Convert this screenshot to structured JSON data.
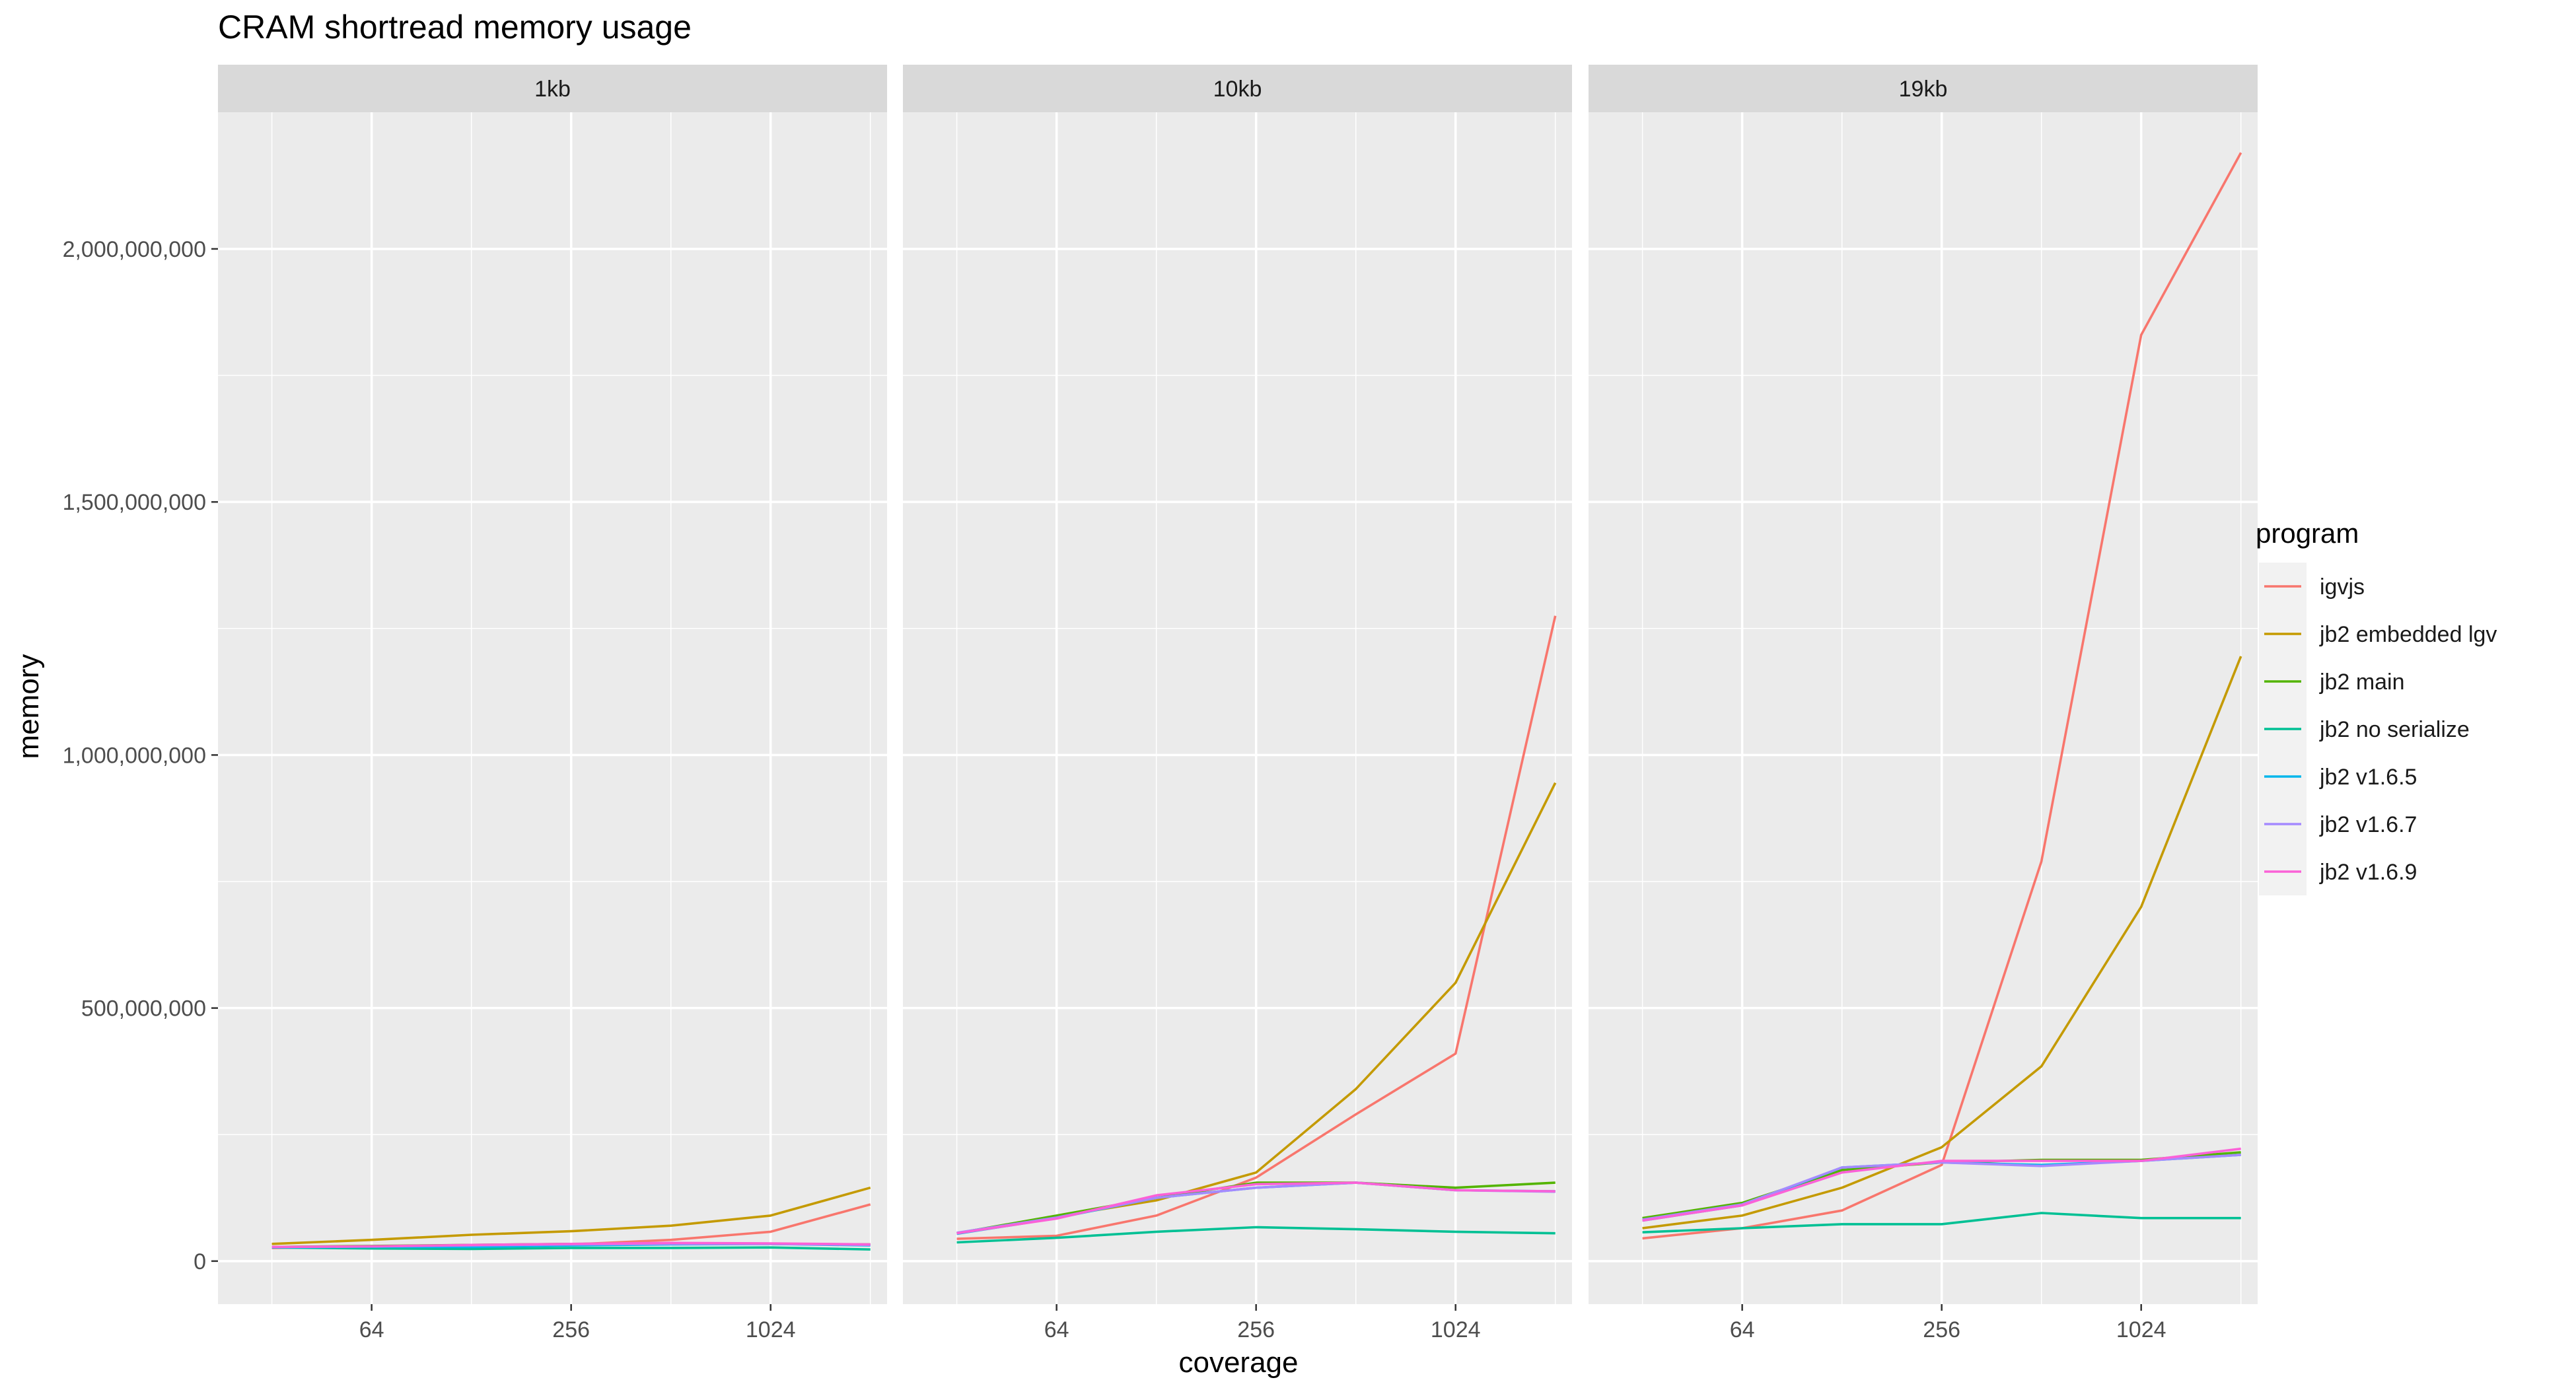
{
  "chart_data": {
    "type": "line",
    "title": "CRAM shortread memory usage",
    "xlabel": "coverage",
    "ylabel": "memory",
    "x_scale": "log2",
    "x_ticks": [
      64,
      256,
      1024
    ],
    "x_tick_labels": [
      "64",
      "256",
      "1024"
    ],
    "y_ticks": [
      0,
      500000000,
      1000000000,
      1500000000,
      2000000000
    ],
    "y_tick_labels": [
      "0",
      "500,000,000",
      "1,000,000,000",
      "1,500,000,000",
      "2,000,000,000"
    ],
    "ylim": [
      -85000000,
      2270000000
    ],
    "xlim": [
      22,
      2300
    ],
    "grid": true,
    "legend_title": "program",
    "legend_position": "right",
    "x": [
      32,
      64,
      128,
      256,
      512,
      1024,
      2048
    ],
    "panels": [
      {
        "label": "1kb",
        "series": [
          {
            "name": "igvjs",
            "values": [
              26000000,
              29000000,
              31000000,
              33000000,
              42000000,
              58000000,
              112000000
            ]
          },
          {
            "name": "jb2 embedded lgv",
            "values": [
              34000000,
              42000000,
              52000000,
              59000000,
              70000000,
              90000000,
              145000000
            ]
          },
          {
            "name": "jb2 main",
            "values": [
              28000000,
              30000000,
              32000000,
              34000000,
              35000000,
              34000000,
              33000000
            ]
          },
          {
            "name": "jb2 no serialize",
            "values": [
              27000000,
              25000000,
              24000000,
              26000000,
              26000000,
              27000000,
              23000000
            ]
          },
          {
            "name": "jb2 v1.6.5",
            "values": [
              27000000,
              28000000,
              28000000,
              31000000,
              33000000,
              34000000,
              31000000
            ]
          },
          {
            "name": "jb2 v1.6.7",
            "values": [
              28000000,
              29000000,
              31000000,
              33000000,
              34000000,
              34000000,
              32000000
            ]
          },
          {
            "name": "jb2 v1.6.9",
            "values": [
              28000000,
              29000000,
              32000000,
              34000000,
              36000000,
              35000000,
              33000000
            ]
          }
        ]
      },
      {
        "label": "10kb",
        "series": [
          {
            "name": "igvjs",
            "values": [
              44000000,
              50000000,
              90000000,
              165000000,
              290000000,
              410000000,
              1275000000
            ]
          },
          {
            "name": "jb2 embedded lgv",
            "values": [
              55000000,
              88000000,
              120000000,
              175000000,
              340000000,
              550000000,
              945000000
            ]
          },
          {
            "name": "jb2 main",
            "values": [
              55000000,
              90000000,
              125000000,
              155000000,
              155000000,
              145000000,
              155000000
            ]
          },
          {
            "name": "jb2 no serialize",
            "values": [
              37000000,
              46000000,
              58000000,
              67000000,
              63000000,
              58000000,
              55000000
            ]
          },
          {
            "name": "jb2 v1.6.5",
            "values": [
              54000000,
              85000000,
              125000000,
              145000000,
              155000000,
              140000000,
              138000000
            ]
          },
          {
            "name": "jb2 v1.6.7",
            "values": [
              56000000,
              86000000,
              125000000,
              145000000,
              155000000,
              140000000,
              137000000
            ]
          },
          {
            "name": "jb2 v1.6.9",
            "values": [
              55000000,
              84000000,
              130000000,
              152000000,
              155000000,
              140000000,
              138000000
            ]
          }
        ]
      },
      {
        "label": "19kb",
        "series": [
          {
            "name": "igvjs",
            "values": [
              45000000,
              65000000,
              100000000,
              190000000,
              790000000,
              1830000000,
              2190000000
            ]
          },
          {
            "name": "jb2 embedded lgv",
            "values": [
              65000000,
              90000000,
              145000000,
              225000000,
              385000000,
              700000000,
              1195000000
            ]
          },
          {
            "name": "jb2 main",
            "values": [
              85000000,
              115000000,
              180000000,
              195000000,
              200000000,
              200000000,
              215000000
            ]
          },
          {
            "name": "jb2 no serialize",
            "values": [
              57000000,
              65000000,
              73000000,
              73000000,
              95000000,
              85000000,
              85000000
            ]
          },
          {
            "name": "jb2 v1.6.5",
            "values": [
              80000000,
              110000000,
              185000000,
              195000000,
              190000000,
              198000000,
              210000000
            ]
          },
          {
            "name": "jb2 v1.6.7",
            "values": [
              82000000,
              112000000,
              185000000,
              195000000,
              188000000,
              198000000,
              210000000
            ]
          },
          {
            "name": "jb2 v1.6.9",
            "values": [
              80000000,
              110000000,
              175000000,
              198000000,
              198000000,
              198000000,
              222000000
            ]
          }
        ]
      }
    ],
    "colors": {
      "igvjs": "#F8766D",
      "jb2 embedded lgv": "#C49A00",
      "jb2 main": "#53B400",
      "jb2 no serialize": "#00C094",
      "jb2 v1.6.5": "#00B6EB",
      "jb2 v1.6.7": "#A58AFF",
      "jb2 v1.6.9": "#FB61D7"
    }
  }
}
